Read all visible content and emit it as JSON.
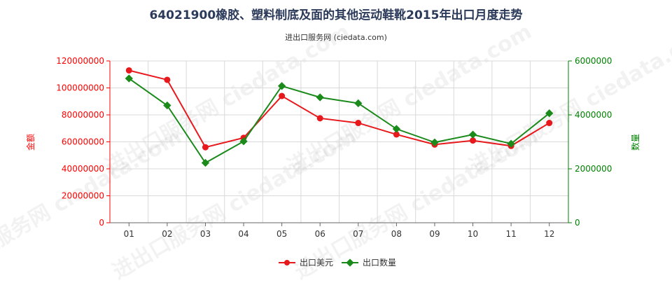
{
  "chart_data": {
    "type": "line",
    "title": "64021900橡胶、塑料制底及面的其他运动鞋靴2015年出口月度走势",
    "subtitle": "进出口服务网 (ciedata.com)",
    "watermark": "进出口服务网 ciedata.com",
    "categories": [
      "01",
      "02",
      "03",
      "04",
      "05",
      "06",
      "07",
      "08",
      "09",
      "10",
      "11",
      "12"
    ],
    "left_axis": {
      "label": "金额",
      "ylim": [
        0,
        120000000
      ],
      "ticks": [
        0,
        20000000,
        40000000,
        60000000,
        80000000,
        100000000,
        120000000
      ],
      "color": "#ff0000"
    },
    "right_axis": {
      "label": "数量",
      "ylim": [
        0,
        6000000
      ],
      "ticks": [
        0,
        2000000,
        4000000,
        6000000
      ],
      "color": "#008000"
    },
    "series": [
      {
        "name": "出口美元",
        "axis": "left",
        "color": "#e8191c",
        "values": [
          113000000,
          106000000,
          56000000,
          63000000,
          94000000,
          77500000,
          74000000,
          65500000,
          58000000,
          61000000,
          57000000,
          74000000
        ]
      },
      {
        "name": "出口数量",
        "axis": "right",
        "color": "#1a8a1a",
        "values": [
          5350000,
          4350000,
          2220000,
          3020000,
          5070000,
          4650000,
          4430000,
          3480000,
          2980000,
          3270000,
          2930000,
          4060000
        ]
      }
    ],
    "grid": true,
    "legend": "bottom-center"
  }
}
